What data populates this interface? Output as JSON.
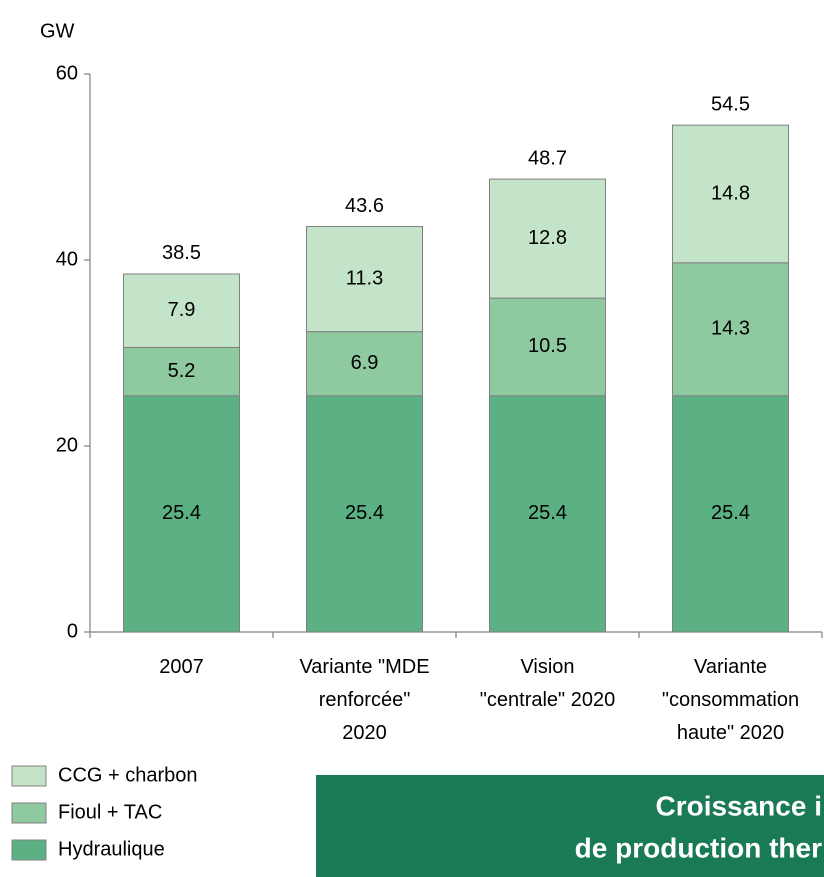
{
  "chart_data": {
    "type": "stacked_bar",
    "y_label": "GW",
    "categories": [
      "2007",
      "Variante \"MDE\nrenforcée\"\n2020",
      "Vision\n\"centrale\" 2020",
      "Variante\n\"consommation\nhaute\" 2020"
    ],
    "series": [
      {
        "name": "Hydraulique",
        "color": "#5bb183",
        "values": [
          25.4,
          25.4,
          25.4,
          25.4
        ]
      },
      {
        "name": "Fioul + TAC",
        "color": "#8fc9a0",
        "values": [
          5.2,
          6.9,
          10.5,
          14.3
        ]
      },
      {
        "name": "CCG + charbon",
        "color": "#c3e4c8",
        "values": [
          7.9,
          11.3,
          12.8,
          14.8
        ]
      }
    ],
    "totals": [
      38.5,
      43.6,
      48.7,
      54.5
    ],
    "ylim": [
      0,
      60
    ],
    "yticks": [
      0,
      20,
      40,
      60
    ],
    "grid": false,
    "legend": "bottom-left",
    "banner": [
      "Croissance i",
      "de production ther"
    ]
  }
}
